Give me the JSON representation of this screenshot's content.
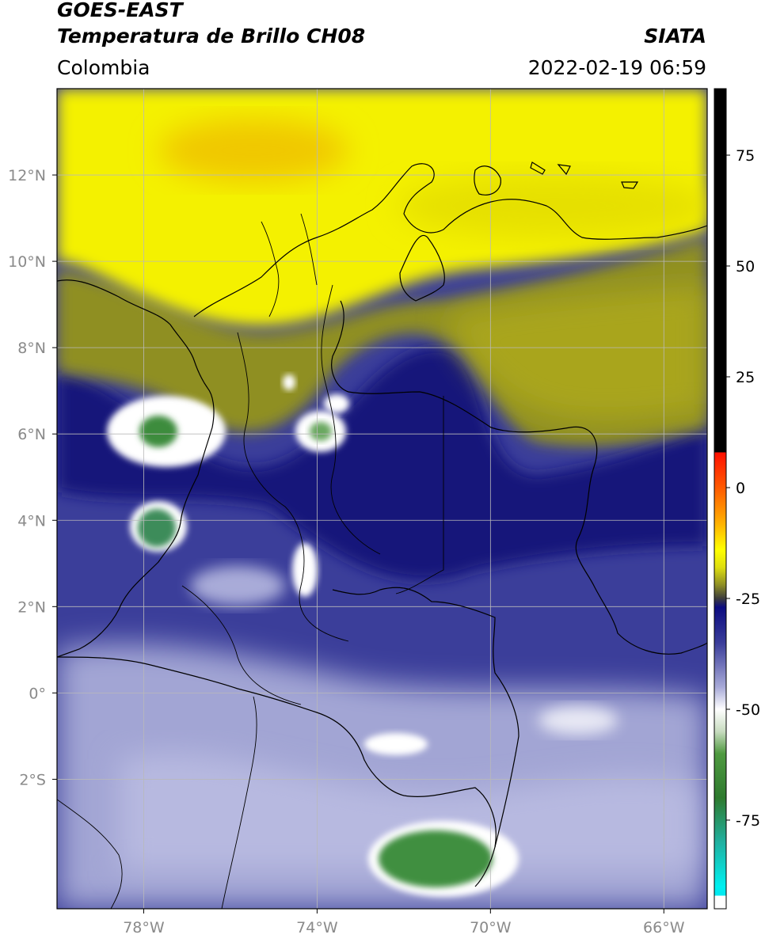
{
  "header": {
    "title_line1": "GOES-EAST",
    "title_line2": "Temperatura de Brillo CH08",
    "region": "Colombia",
    "organization": "SIATA",
    "datetime": "2022-02-19 06:59"
  },
  "map": {
    "lon_range": [
      -80,
      -65
    ],
    "lat_range": [
      -5,
      14
    ],
    "lon_ticks": [
      {
        "value": -78,
        "label": "78°W"
      },
      {
        "value": -74,
        "label": "74°W"
      },
      {
        "value": -70,
        "label": "70°W"
      },
      {
        "value": -66,
        "label": "66°W"
      }
    ],
    "lat_ticks": [
      {
        "value": 12,
        "label": "12°N"
      },
      {
        "value": 10,
        "label": "10°N"
      },
      {
        "value": 8,
        "label": "8°N"
      },
      {
        "value": 6,
        "label": "6°N"
      },
      {
        "value": 4,
        "label": "4°N"
      },
      {
        "value": 2,
        "label": "2°N"
      },
      {
        "value": 0,
        "label": "0°"
      },
      {
        "value": -2,
        "label": "2°S"
      }
    ],
    "colors": {
      "yellow": "#f2ef00",
      "olive": "#8f8f20",
      "navy": "#16167a",
      "blue": "#3b3e9a",
      "lavender": "#a7a9d6",
      "white": "#ffffff",
      "green": "#3f8f3f",
      "grid": "#b9b9b9",
      "border": "#000000"
    }
  },
  "colorbar": {
    "ticks": [
      {
        "value": 75,
        "label": "75"
      },
      {
        "value": 50,
        "label": "50"
      },
      {
        "value": 25,
        "label": "25"
      },
      {
        "value": 0,
        "label": "0"
      },
      {
        "value": -25,
        "label": "-25"
      },
      {
        "value": -50,
        "label": "-50"
      },
      {
        "value": -75,
        "label": "-75"
      }
    ],
    "range": [
      -95,
      90
    ],
    "stops": [
      {
        "value": 90,
        "color": "#000000"
      },
      {
        "value": 8,
        "color": "#000000"
      },
      {
        "value": 7.9,
        "color": "#ff1000"
      },
      {
        "value": 0,
        "color": "#ff5a00"
      },
      {
        "value": -8,
        "color": "#ffb000"
      },
      {
        "value": -14,
        "color": "#ffff00"
      },
      {
        "value": -18,
        "color": "#dede10"
      },
      {
        "value": -22,
        "color": "#8d8d25"
      },
      {
        "value": -25,
        "color": "#3d3d3d"
      },
      {
        "value": -27,
        "color": "#0c0c80"
      },
      {
        "value": -35,
        "color": "#3a3d9a"
      },
      {
        "value": -45,
        "color": "#a8aad8"
      },
      {
        "value": -50,
        "color": "#ffffff"
      },
      {
        "value": -55,
        "color": "#c8dcc0"
      },
      {
        "value": -60,
        "color": "#4f9a40"
      },
      {
        "value": -70,
        "color": "#2e7a2e"
      },
      {
        "value": -80,
        "color": "#20b0a0"
      },
      {
        "value": -90,
        "color": "#00f0f0"
      },
      {
        "value": -92,
        "color": "#00e8f0"
      },
      {
        "value": -92.1,
        "color": "#ffffff"
      },
      {
        "value": -95,
        "color": "#ffffff"
      }
    ]
  }
}
